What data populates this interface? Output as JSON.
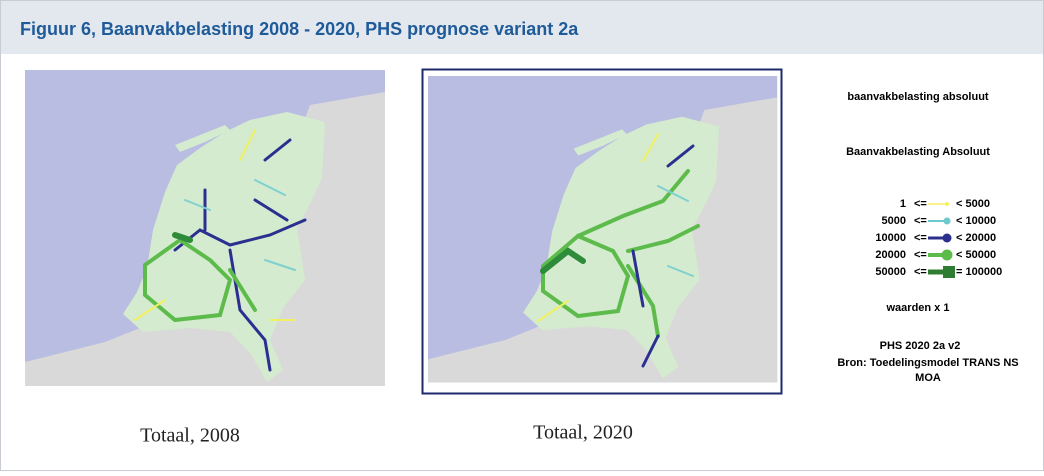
{
  "header": {
    "title": "Figuur 6, Baanvakbelasting 2008 - 2020, PHS prognose variant 2a"
  },
  "maps": [
    {
      "caption": "Totaal, 2008"
    },
    {
      "caption": "Totaal, 2020"
    }
  ],
  "legend": {
    "title": "baanvakbelasting  absoluut",
    "subtitle": "Baanvakbelasting  Absoluut",
    "classes": [
      {
        "from": "1",
        "op": "<=",
        "to": "< 5000"
      },
      {
        "from": "5000",
        "op": "<=",
        "to": "< 10000"
      },
      {
        "from": "10000",
        "op": "<=",
        "to": "< 20000"
      },
      {
        "from": "20000",
        "op": "<=",
        "to": "< 50000"
      },
      {
        "from": "50000",
        "op": "<=",
        "to": "= 100000"
      }
    ],
    "note": "waarden x 1",
    "scenario": "PHS 2020 2a v2",
    "source": [
      "Bron: Toedelingsmodel TRANS NS",
      "MOA"
    ]
  }
}
